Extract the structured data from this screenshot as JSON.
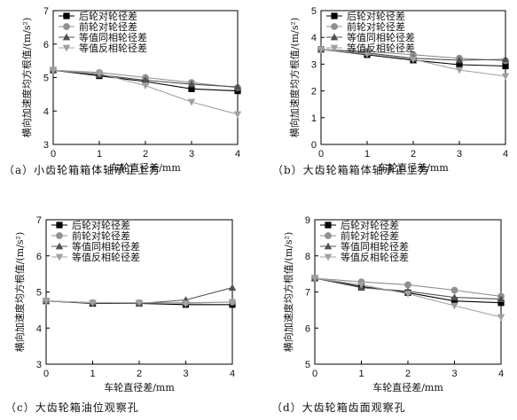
{
  "chart_data": [
    {
      "type": "line",
      "caption": "（a）小齿轮箱箱体轴承正上方",
      "xlabel": "车轮直径差/mm",
      "ylabel": "横向加速度均方根值/(m/s²)",
      "xlim": [
        0,
        4
      ],
      "ylim": [
        3,
        7
      ],
      "x_ticks": [
        0,
        1,
        2,
        3,
        4
      ],
      "y_ticks": [
        3,
        4,
        5,
        6,
        7
      ],
      "x": [
        0,
        1,
        2,
        3,
        4
      ],
      "legend_position": "top-left",
      "series": [
        {
          "name": "后轮对轮径差",
          "marker": "square",
          "color": "#000000",
          "values": [
            5.22,
            5.05,
            4.88,
            4.66,
            4.6
          ]
        },
        {
          "name": "前轮对轮径差",
          "marker": "circle",
          "color": "#909090",
          "values": [
            5.22,
            5.15,
            5.0,
            4.85,
            4.7
          ]
        },
        {
          "name": "等值同相轮径差",
          "marker": "triangle",
          "color": "#505050",
          "values": [
            5.22,
            5.08,
            4.92,
            4.8,
            4.72
          ]
        },
        {
          "name": "等值反相轮径差",
          "marker": "triangle-down",
          "color": "#a0a0a0",
          "values": [
            5.22,
            5.12,
            4.76,
            4.27,
            3.9
          ]
        }
      ]
    },
    {
      "type": "line",
      "caption": "（b）大齿轮箱箱体轴承正上方",
      "xlabel": "车轮直径差/mm",
      "ylabel": "横向加速度均方根值/(m/s²)",
      "xlim": [
        0,
        4
      ],
      "ylim": [
        0,
        5
      ],
      "x_ticks": [
        0,
        1,
        2,
        3,
        4
      ],
      "y_ticks": [
        0,
        1,
        2,
        3,
        4,
        5
      ],
      "x": [
        0,
        1,
        2,
        3,
        4
      ],
      "legend_position": "top-left",
      "series": [
        {
          "name": "后轮对轮径差",
          "marker": "square",
          "color": "#000000",
          "values": [
            3.55,
            3.35,
            3.15,
            2.98,
            2.93
          ]
        },
        {
          "name": "前轮对轮径差",
          "marker": "circle",
          "color": "#909090",
          "values": [
            3.55,
            3.48,
            3.35,
            3.22,
            3.13
          ]
        },
        {
          "name": "等值同相轮径差",
          "marker": "triangle",
          "color": "#505050",
          "values": [
            3.55,
            3.42,
            3.22,
            3.15,
            3.18
          ]
        },
        {
          "name": "等值反相轮径差",
          "marker": "triangle-down",
          "color": "#a0a0a0",
          "values": [
            3.55,
            3.38,
            3.18,
            2.78,
            2.55
          ]
        }
      ]
    },
    {
      "type": "line",
      "caption": "（c）大齿轮箱油位观察孔",
      "xlabel": "车轮直径差/mm",
      "ylabel": "横向加速度均方根值/(m/s²)",
      "xlim": [
        0,
        4
      ],
      "ylim": [
        3,
        7
      ],
      "x_ticks": [
        0,
        1,
        2,
        3,
        4
      ],
      "y_ticks": [
        3,
        4,
        5,
        6,
        7
      ],
      "x": [
        0,
        1,
        2,
        3,
        4
      ],
      "legend_position": "top-left",
      "series": [
        {
          "name": "后轮对轮径差",
          "marker": "square",
          "color": "#000000",
          "values": [
            4.75,
            4.68,
            4.68,
            4.65,
            4.65
          ]
        },
        {
          "name": "前轮对轮径差",
          "marker": "circle",
          "color": "#909090",
          "values": [
            4.75,
            4.7,
            4.7,
            4.7,
            4.72
          ]
        },
        {
          "name": "等值同相轮径差",
          "marker": "triangle",
          "color": "#505050",
          "values": [
            4.75,
            4.7,
            4.68,
            4.78,
            5.12
          ]
        },
        {
          "name": "等值反相轮径差",
          "marker": "triangle-down",
          "color": "#a0a0a0",
          "values": [
            4.75,
            4.7,
            4.7,
            4.68,
            4.72
          ]
        }
      ]
    },
    {
      "type": "line",
      "caption": "（d）大齿轮箱齿面观察孔",
      "xlabel": "车轮直径差/mm",
      "ylabel": "横向加速度均方根值/(m/s²)",
      "xlim": [
        0,
        4
      ],
      "ylim": [
        5,
        9
      ],
      "x_ticks": [
        0,
        1,
        2,
        3,
        4
      ],
      "y_ticks": [
        5,
        6,
        7,
        8,
        9
      ],
      "x": [
        0,
        1,
        2,
        3,
        4
      ],
      "legend_position": "top-left",
      "series": [
        {
          "name": "后轮对轮径差",
          "marker": "square",
          "color": "#000000",
          "values": [
            7.38,
            7.15,
            6.98,
            6.75,
            6.7
          ]
        },
        {
          "name": "前轮对轮径差",
          "marker": "circle",
          "color": "#909090",
          "values": [
            7.38,
            7.28,
            7.2,
            7.05,
            6.88
          ]
        },
        {
          "name": "等值同相轮径差",
          "marker": "triangle",
          "color": "#505050",
          "values": [
            7.38,
            7.12,
            7.02,
            6.85,
            6.8
          ]
        },
        {
          "name": "等值反相轮径差",
          "marker": "triangle-down",
          "color": "#a0a0a0",
          "values": [
            7.38,
            7.2,
            6.95,
            6.62,
            6.3
          ]
        }
      ]
    }
  ]
}
